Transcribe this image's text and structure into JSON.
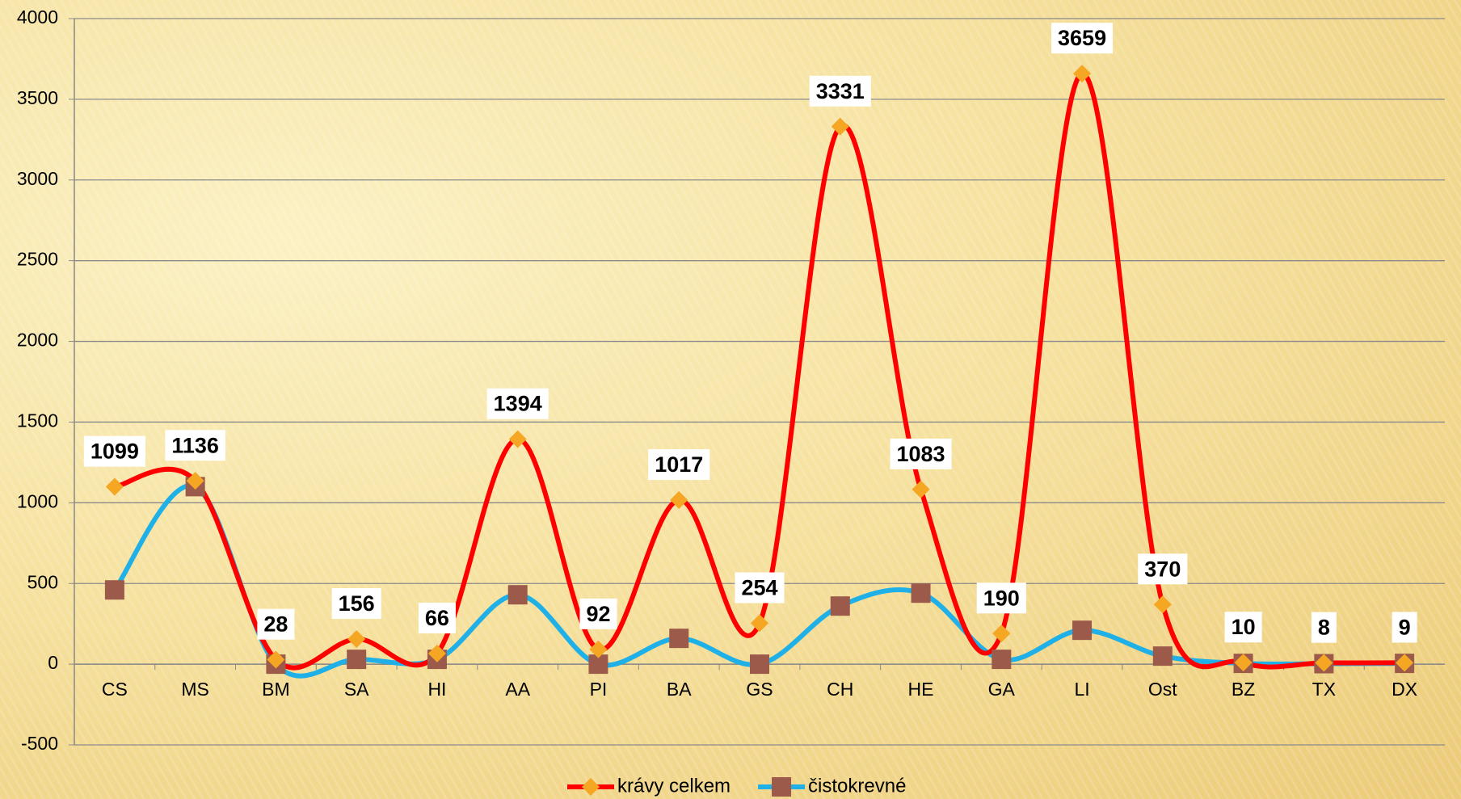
{
  "chart_data": {
    "type": "line",
    "categories": [
      "CS",
      "MS",
      "BM",
      "SA",
      "HI",
      "AA",
      "PI",
      "BA",
      "GS",
      "CH",
      "HE",
      "GA",
      "LI",
      "Ost",
      "BZ",
      "TX",
      "DX"
    ],
    "series": [
      {
        "name": "krávy celkem",
        "color": "#ff0000",
        "marker_color": "#f5a623",
        "marker": "diamond",
        "values": [
          1099,
          1136,
          28,
          156,
          66,
          1394,
          92,
          1017,
          254,
          3331,
          1083,
          190,
          3659,
          370,
          10,
          8,
          9
        ]
      },
      {
        "name": "čistokrevné",
        "color": "#1fb0e8",
        "marker_color": "#9c5a4a",
        "marker": "square",
        "values": [
          460,
          1100,
          0,
          30,
          30,
          430,
          0,
          160,
          0,
          360,
          440,
          30,
          210,
          50,
          5,
          3,
          5
        ]
      }
    ],
    "ylim": [
      -500,
      4000
    ],
    "yticks": [
      -500,
      0,
      500,
      1000,
      1500,
      2000,
      2500,
      3000,
      3500,
      4000
    ],
    "grid": true,
    "legend": "bottom",
    "data_labels_series": 0
  }
}
